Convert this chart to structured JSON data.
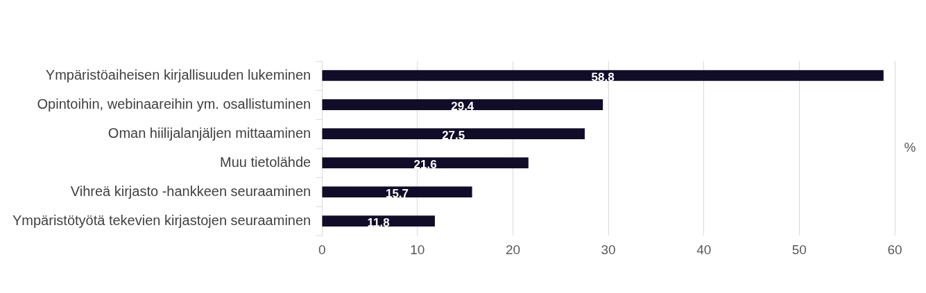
{
  "chart_data": {
    "type": "bar",
    "orientation": "horizontal",
    "xlabel": "%",
    "categories": [
      "Ympäristöaiheisen kirjallisuuden lukeminen",
      "Opintoihin, webinaareihin ym. osallistuminen",
      "Oman hiilijalanjäljen mittaaminen",
      "Muu tietolähde",
      "Vihreä kirjasto -hankkeen seuraaminen",
      "Ympäristötyötä tekevien kirjastojen seuraaminen"
    ],
    "values": [
      58.8,
      29.4,
      27.5,
      21.6,
      15.7,
      11.8
    ],
    "color": "#110c28",
    "xlim": [
      0,
      60
    ],
    "xticks": [
      0,
      10,
      20,
      30,
      40,
      50,
      60
    ],
    "grid": "x",
    "legend": false,
    "data_labels": true
  }
}
